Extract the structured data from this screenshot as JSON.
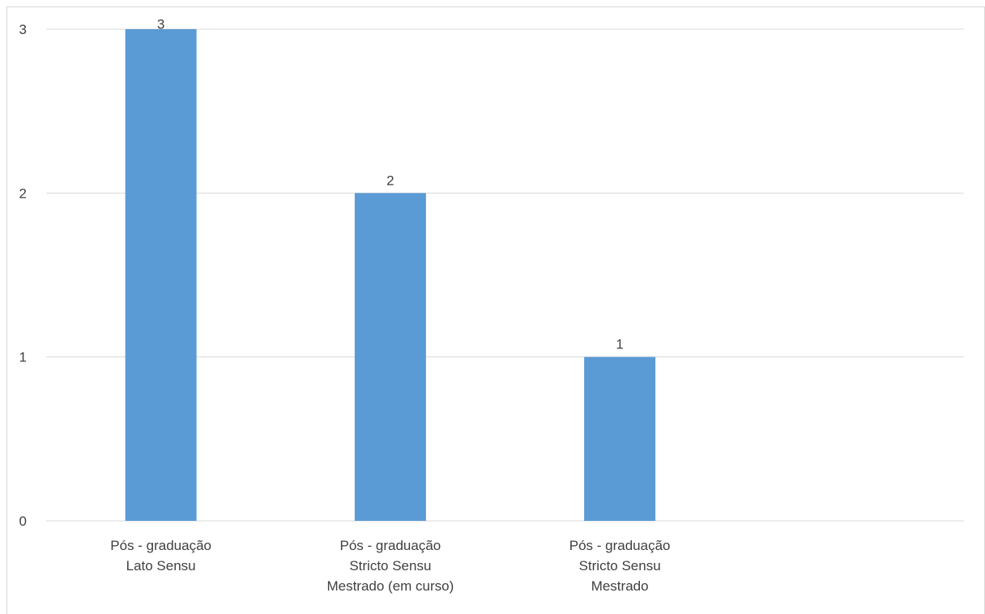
{
  "chart_data": {
    "type": "bar",
    "categories": [
      [
        "Pós - graduação",
        "Lato Sensu"
      ],
      [
        "Pós - graduação",
        "Stricto Sensu",
        "Mestrado (em curso)"
      ],
      [
        "Pós - graduação",
        "Stricto Sensu",
        "Mestrado"
      ],
      [
        ""
      ]
    ],
    "values": [
      3,
      2,
      1,
      null
    ],
    "data_labels": [
      "3",
      "2",
      "1",
      ""
    ],
    "title": "",
    "xlabel": "",
    "ylabel": "",
    "ylim": [
      0,
      3
    ],
    "yticks": [
      0,
      1,
      2,
      3
    ],
    "ytick_labels": [
      "0",
      "1",
      "2",
      "3"
    ],
    "grid": true,
    "legend": "none",
    "colors": {
      "bar": "#5b9bd5",
      "grid": "#d9d9d9",
      "axis": "#d9d9d9",
      "text": "#404040",
      "border": "#d9d9d9"
    }
  }
}
